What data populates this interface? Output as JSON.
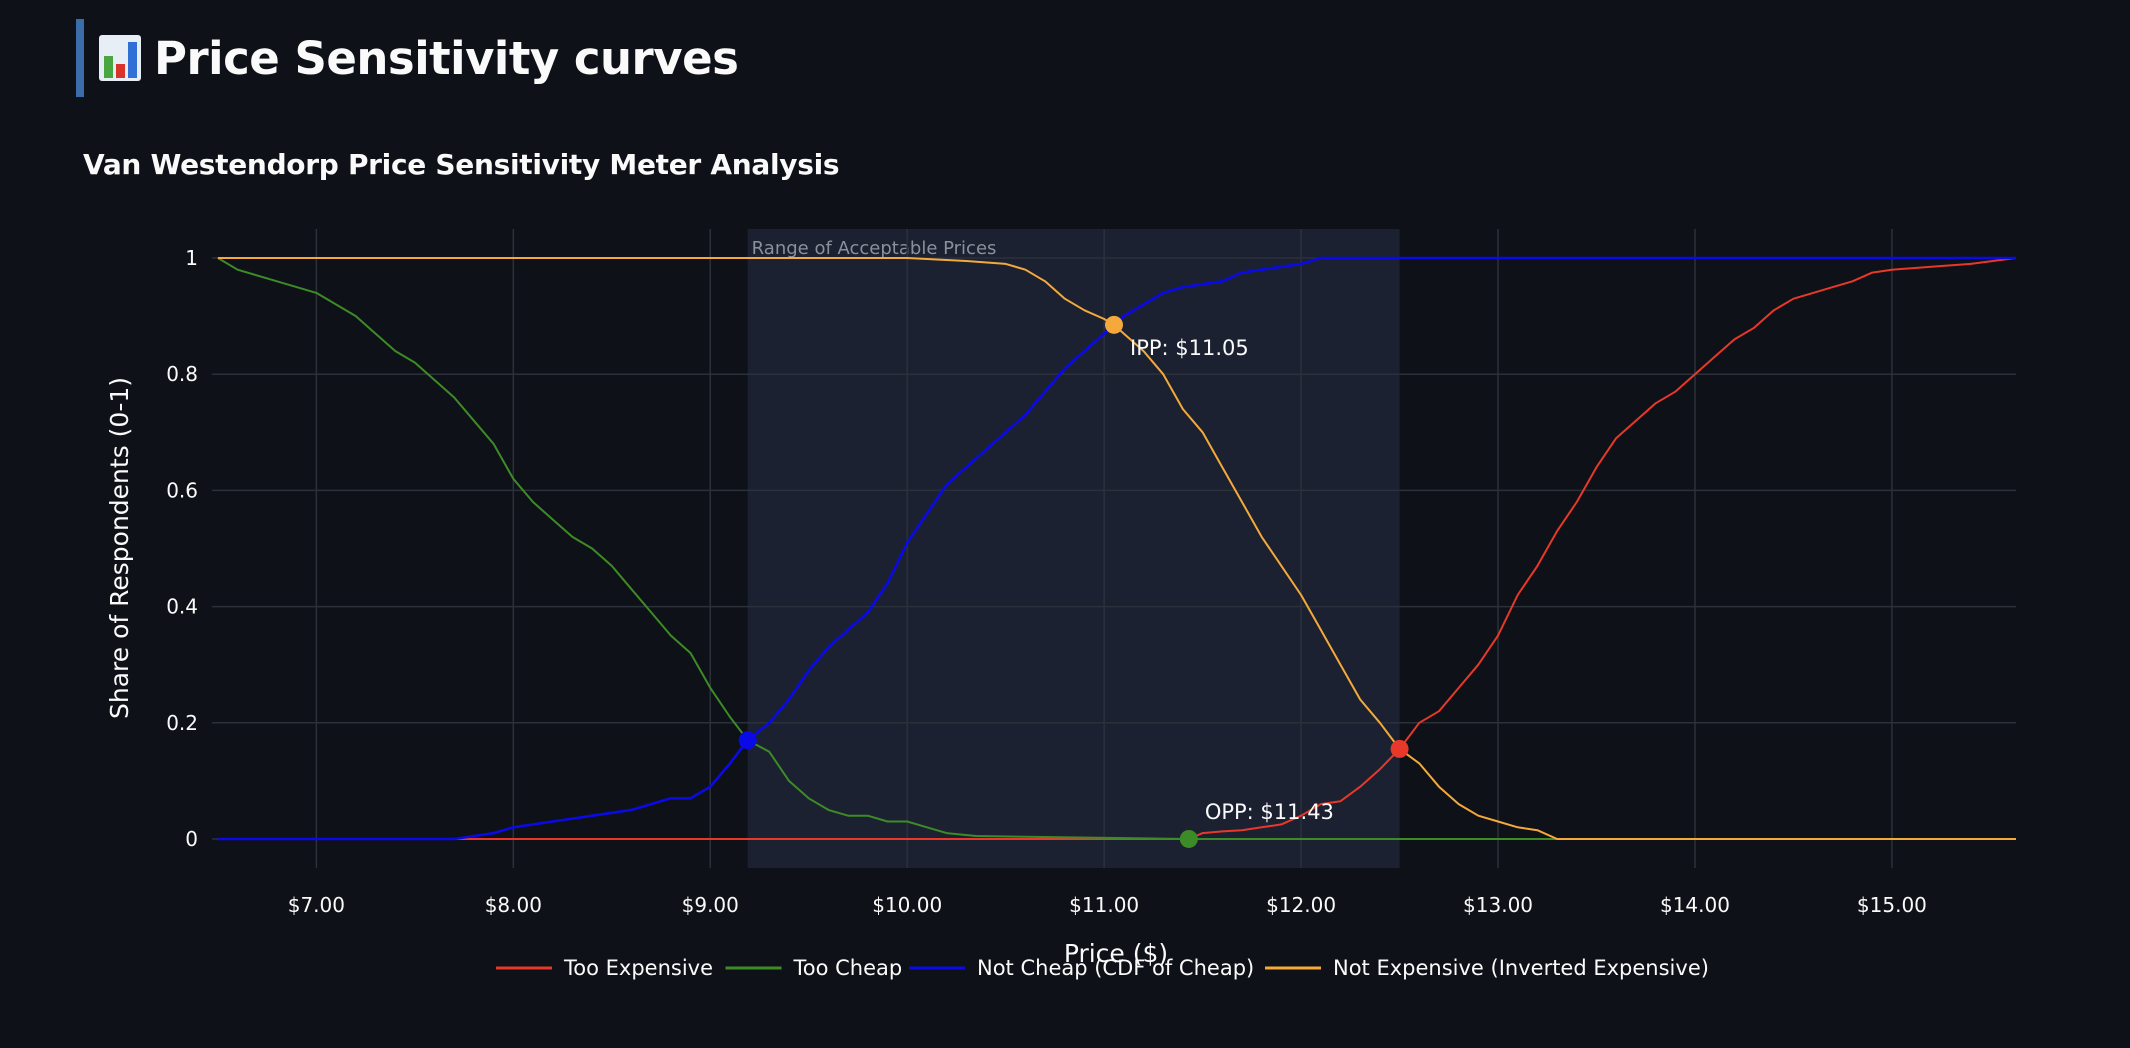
{
  "page": {
    "title": "Price Sensitivity curves",
    "icon": "bar-chart-icon"
  },
  "chart_data": {
    "type": "line",
    "title": "Van Westendorp Price Sensitivity Meter Analysis",
    "xlabel": "Price ($)",
    "ylabel": "Share of Respondents (0-1)",
    "xlim": [
      6.47,
      15.63
    ],
    "ylim": [
      -0.05,
      1.05
    ],
    "x_ticks": [
      7,
      8,
      9,
      10,
      11,
      12,
      13,
      14,
      15
    ],
    "x_tick_labels": [
      "$7.00",
      "$8.00",
      "$9.00",
      "$10.00",
      "$11.00",
      "$12.00",
      "$13.00",
      "$14.00",
      "$15.00"
    ],
    "y_ticks": [
      0,
      0.2,
      0.4,
      0.6,
      0.8,
      1
    ],
    "y_tick_labels": [
      "0",
      "0.2",
      "0.4",
      "0.6",
      "0.8",
      "1"
    ],
    "grid": true,
    "legend_position": "bottom",
    "range_band": {
      "label": "Range of Acceptable Prices",
      "from": 9.19,
      "to": 12.5
    },
    "series": [
      {
        "name": "Too Expensive",
        "color": "#e8382a",
        "x": [
          6.5,
          10.35,
          10.36,
          11.43,
          11.5,
          11.6,
          11.7,
          11.8,
          11.9,
          12.0,
          12.1,
          12.2,
          12.3,
          12.4,
          12.5,
          12.6,
          12.7,
          12.8,
          12.9,
          13.0,
          13.1,
          13.2,
          13.3,
          13.4,
          13.5,
          13.6,
          13.7,
          13.8,
          13.9,
          14.0,
          14.1,
          14.2,
          14.3,
          14.4,
          14.5,
          14.6,
          14.7,
          14.8,
          14.9,
          15.0,
          15.2,
          15.4,
          15.63
        ],
        "values": [
          0,
          0,
          0,
          0,
          0.01,
          0.013,
          0.015,
          0.02,
          0.025,
          0.04,
          0.06,
          0.065,
          0.09,
          0.12,
          0.155,
          0.2,
          0.22,
          0.26,
          0.3,
          0.35,
          0.42,
          0.47,
          0.53,
          0.58,
          0.64,
          0.69,
          0.72,
          0.75,
          0.77,
          0.8,
          0.83,
          0.86,
          0.88,
          0.91,
          0.93,
          0.94,
          0.95,
          0.96,
          0.975,
          0.98,
          0.985,
          0.99,
          1.0
        ]
      },
      {
        "name": "Too Cheap",
        "color": "#3d8b27",
        "x": [
          6.5,
          6.6,
          6.8,
          7.0,
          7.1,
          7.2,
          7.3,
          7.4,
          7.5,
          7.6,
          7.7,
          7.8,
          7.9,
          8.0,
          8.1,
          8.2,
          8.3,
          8.4,
          8.5,
          8.6,
          8.7,
          8.8,
          8.9,
          9.0,
          9.1,
          9.19,
          9.3,
          9.4,
          9.5,
          9.6,
          9.7,
          9.8,
          9.9,
          10.0,
          10.1,
          10.2,
          10.35,
          11.43,
          13.3,
          15.63
        ],
        "values": [
          1.0,
          0.98,
          0.96,
          0.94,
          0.92,
          0.9,
          0.87,
          0.84,
          0.82,
          0.79,
          0.76,
          0.72,
          0.68,
          0.62,
          0.58,
          0.55,
          0.52,
          0.5,
          0.47,
          0.43,
          0.39,
          0.35,
          0.32,
          0.26,
          0.21,
          0.17,
          0.15,
          0.1,
          0.07,
          0.05,
          0.04,
          0.04,
          0.03,
          0.03,
          0.02,
          0.01,
          0.005,
          0.0,
          0.0,
          0.0
        ]
      },
      {
        "name": "Not Cheap (CDF of Cheap)",
        "color": "#0a0ae8",
        "x": [
          6.5,
          7.7,
          7.8,
          7.9,
          8.0,
          8.1,
          8.2,
          8.3,
          8.4,
          8.5,
          8.6,
          8.7,
          8.8,
          8.9,
          9.0,
          9.1,
          9.19,
          9.3,
          9.4,
          9.5,
          9.6,
          9.7,
          9.8,
          9.9,
          10.0,
          10.1,
          10.2,
          10.3,
          10.4,
          10.5,
          10.6,
          10.7,
          10.8,
          10.9,
          11.0,
          11.05,
          11.1,
          11.2,
          11.3,
          11.4,
          11.5,
          11.6,
          11.7,
          11.8,
          11.9,
          12.0,
          12.1,
          12.3,
          12.5,
          13.0,
          15.63
        ],
        "values": [
          0.0,
          0.0,
          0.005,
          0.01,
          0.02,
          0.025,
          0.03,
          0.035,
          0.04,
          0.045,
          0.05,
          0.06,
          0.07,
          0.07,
          0.09,
          0.13,
          0.17,
          0.2,
          0.24,
          0.29,
          0.33,
          0.36,
          0.39,
          0.44,
          0.51,
          0.56,
          0.61,
          0.64,
          0.67,
          0.7,
          0.73,
          0.77,
          0.81,
          0.84,
          0.87,
          0.885,
          0.9,
          0.92,
          0.94,
          0.95,
          0.955,
          0.96,
          0.975,
          0.98,
          0.985,
          0.99,
          1.0,
          1.0,
          1.0,
          1.0,
          1.0
        ]
      },
      {
        "name": "Not Expensive (Inverted Expensive)",
        "color": "#f5a93a",
        "x": [
          6.5,
          9.19,
          9.5,
          10.0,
          10.3,
          10.5,
          10.6,
          10.7,
          10.8,
          10.9,
          11.0,
          11.05,
          11.1,
          11.2,
          11.3,
          11.4,
          11.5,
          11.6,
          11.7,
          11.8,
          11.9,
          12.0,
          12.1,
          12.2,
          12.3,
          12.4,
          12.5,
          12.6,
          12.7,
          12.8,
          12.9,
          13.0,
          13.1,
          13.2,
          13.3,
          15.63
        ],
        "values": [
          1.0,
          1.0,
          1.0,
          1.0,
          0.995,
          0.99,
          0.98,
          0.96,
          0.93,
          0.91,
          0.895,
          0.885,
          0.87,
          0.84,
          0.8,
          0.74,
          0.7,
          0.64,
          0.58,
          0.52,
          0.47,
          0.42,
          0.36,
          0.3,
          0.24,
          0.2,
          0.155,
          0.13,
          0.09,
          0.06,
          0.04,
          0.03,
          0.02,
          0.015,
          0.0,
          0.0
        ]
      }
    ],
    "markers": [
      {
        "x": 9.19,
        "y": 0.17,
        "color": "#0a0ae8",
        "label": ""
      },
      {
        "x": 11.05,
        "y": 0.885,
        "color": "#f5a93a",
        "label": "IPP: $11.05"
      },
      {
        "x": 11.43,
        "y": 0.0,
        "color": "#3d8b27",
        "label": "OPP: $11.43"
      },
      {
        "x": 12.5,
        "y": 0.155,
        "color": "#e8382a",
        "label": ""
      }
    ]
  }
}
